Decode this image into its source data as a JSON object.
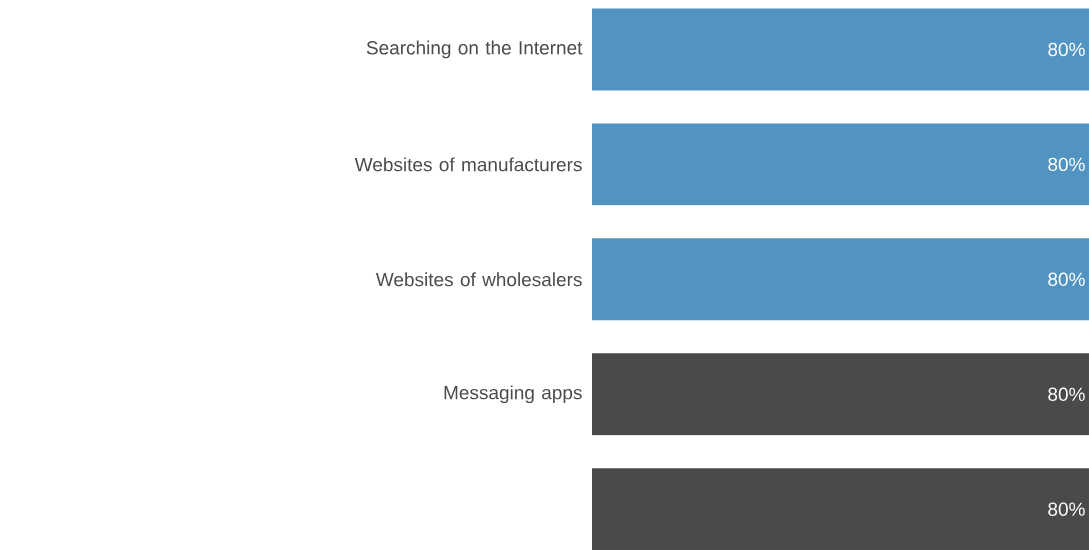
{
  "chart_data": {
    "type": "bar",
    "orientation": "horizontal",
    "categories": [
      "Searching on the Internet",
      "Websites of manufacturers",
      "Websites of wholesalers",
      "Messaging apps",
      null
    ],
    "values": [
      80,
      80,
      80,
      80,
      80
    ],
    "colors": [
      "#5294c1",
      "#5294c1",
      "#5294c1",
      "#4a4a48",
      "#4a4a48"
    ],
    "value_labels": [
      "80%",
      "80%",
      "80%",
      "80%",
      "80%"
    ]
  }
}
